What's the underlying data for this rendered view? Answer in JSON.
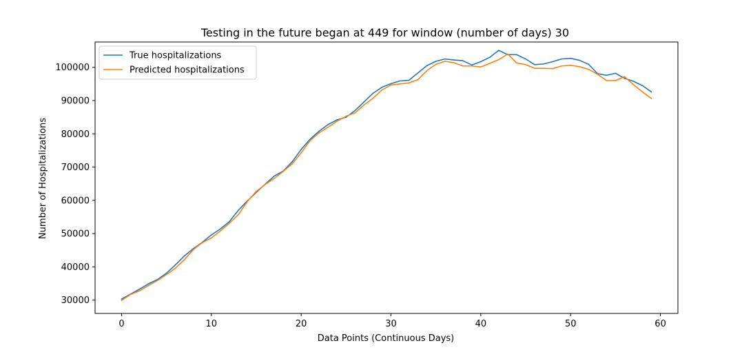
{
  "chart_data": {
    "type": "line",
    "title": "Testing in the future began at 449 for window (number of days) 30",
    "xlabel": "Data Points (Continuous Days)",
    "ylabel": "Number of Hospitalizations",
    "xlim": [
      -2.95,
      61.95
    ],
    "ylim": [
      26000,
      107600
    ],
    "xticks": [
      0,
      10,
      20,
      30,
      40,
      50,
      60
    ],
    "yticks": [
      30000,
      40000,
      50000,
      60000,
      70000,
      80000,
      90000,
      100000
    ],
    "grid": false,
    "legend_position": "top-left",
    "x": [
      0,
      1,
      2,
      3,
      4,
      5,
      6,
      7,
      8,
      9,
      10,
      11,
      12,
      13,
      14,
      15,
      16,
      17,
      18,
      19,
      20,
      21,
      22,
      23,
      24,
      25,
      26,
      27,
      28,
      29,
      30,
      31,
      32,
      33,
      34,
      35,
      36,
      37,
      38,
      39,
      40,
      41,
      42,
      43,
      44,
      45,
      46,
      47,
      48,
      49,
      50,
      51,
      52,
      53,
      54,
      55,
      56,
      57,
      58,
      59
    ],
    "series": [
      {
        "name": "True hospitalizations",
        "color": "#1f77b4",
        "values": [
          30300,
          31800,
          33300,
          34900,
          36200,
          38100,
          40600,
          43300,
          45500,
          47400,
          49600,
          51400,
          53600,
          57000,
          59800,
          62400,
          64900,
          67300,
          68800,
          71600,
          75300,
          78400,
          80800,
          82800,
          84200,
          85000,
          87000,
          89600,
          92200,
          94000,
          95100,
          95900,
          96100,
          98300,
          100500,
          101800,
          102500,
          102200,
          102000,
          100700,
          101700,
          103000,
          105100,
          103800,
          103800,
          102500,
          100800,
          101000,
          101700,
          102500,
          102700,
          102100,
          100900,
          98100,
          97600,
          98200,
          96700,
          95800,
          94500,
          92600
        ]
      },
      {
        "name": "Predicted hospitalizations",
        "color": "#ff7f0e",
        "values": [
          29900,
          31700,
          32800,
          34400,
          35900,
          37700,
          39600,
          42200,
          45200,
          47300,
          48700,
          50800,
          53100,
          55700,
          59600,
          62700,
          64800,
          66600,
          68700,
          71000,
          74300,
          78000,
          80300,
          82000,
          83800,
          85300,
          86300,
          88700,
          90700,
          93200,
          94700,
          95000,
          95300,
          96300,
          99000,
          100900,
          101800,
          101400,
          100400,
          100400,
          100100,
          101200,
          102300,
          104000,
          101300,
          100800,
          99700,
          99700,
          99600,
          100400,
          100600,
          100200,
          99400,
          97900,
          96000,
          96000,
          97200,
          94800,
          92600,
          90600
        ]
      }
    ]
  }
}
